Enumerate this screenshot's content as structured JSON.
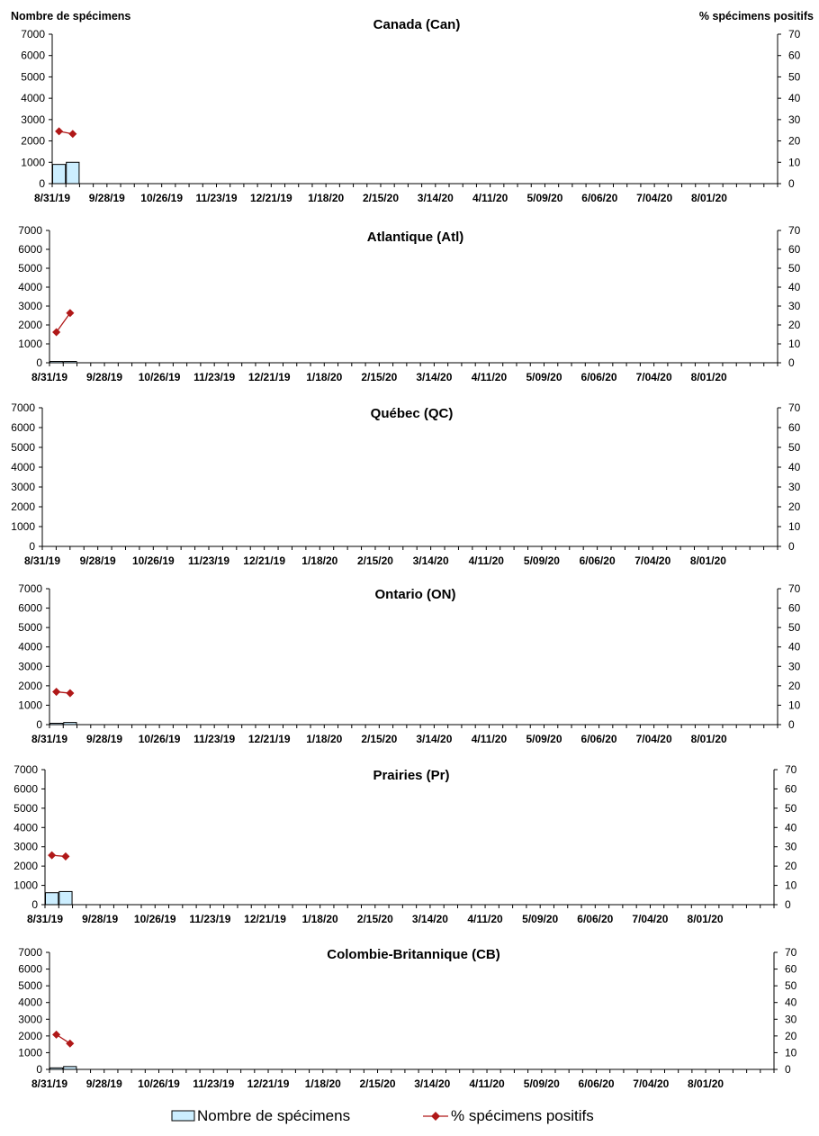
{
  "left_axis_title": "Nombre de spécimens",
  "right_axis_title": "% spécimens positifs",
  "legend": {
    "bar_label": "Nombre de spécimens",
    "line_label": "% spécimens positifs"
  },
  "colors": {
    "bar_fill": "#CCEEFF",
    "bar_stroke": "#000000",
    "line": "#B01818"
  },
  "chart_data": [
    {
      "type": "bar",
      "title": "Canada (Can)",
      "x_tick_labels": [
        "8/31/19",
        "9/28/19",
        "10/26/19",
        "11/23/19",
        "12/21/19",
        "1/18/20",
        "2/15/20",
        "3/14/20",
        "4/11/20",
        "5/09/20",
        "6/06/20",
        "7/04/20",
        "8/01/20"
      ],
      "y_left_ticks": [
        "0",
        "1000",
        "2000",
        "3000",
        "4000",
        "5000",
        "6000",
        "7000"
      ],
      "y_right_ticks": [
        "0",
        "10",
        "20",
        "30",
        "40",
        "50",
        "60",
        "70"
      ],
      "ylim": [
        0,
        7000
      ],
      "y2lim": [
        0,
        70
      ],
      "series": [
        {
          "name": "Nombre de spécimens",
          "axis": "left",
          "values": [
            900,
            1000
          ]
        },
        {
          "name": "% spécimens positifs",
          "axis": "right",
          "values": [
            24.5,
            23.3
          ]
        }
      ]
    },
    {
      "type": "bar",
      "title": "Atlantique (Atl)",
      "x_tick_labels": [
        "8/31/19",
        "9/28/19",
        "10/26/19",
        "11/23/19",
        "12/21/19",
        "1/18/20",
        "2/15/20",
        "3/14/20",
        "4/11/20",
        "5/09/20",
        "6/06/20",
        "7/04/20",
        "8/01/20"
      ],
      "y_left_ticks": [
        "0",
        "1000",
        "2000",
        "3000",
        "4000",
        "5000",
        "6000",
        "7000"
      ],
      "y_right_ticks": [
        "0",
        "10",
        "20",
        "30",
        "40",
        "50",
        "60",
        "70"
      ],
      "ylim": [
        0,
        7000
      ],
      "y2lim": [
        0,
        70
      ],
      "series": [
        {
          "name": "Nombre de spécimens",
          "axis": "left",
          "values": [
            40,
            45
          ]
        },
        {
          "name": "% spécimens positifs",
          "axis": "right",
          "values": [
            16.2,
            26.3
          ]
        }
      ]
    },
    {
      "type": "bar",
      "title": "Québec (QC)",
      "x_tick_labels": [
        "8/31/19",
        "9/28/19",
        "10/26/19",
        "11/23/19",
        "12/21/19",
        "1/18/20",
        "2/15/20",
        "3/14/20",
        "4/11/20",
        "5/09/20",
        "6/06/20",
        "7/04/20",
        "8/01/20"
      ],
      "y_left_ticks": [
        "0",
        "1000",
        "2000",
        "3000",
        "4000",
        "5000",
        "6000",
        "7000"
      ],
      "y_right_ticks": [
        "0",
        "10",
        "20",
        "30",
        "40",
        "50",
        "60",
        "70"
      ],
      "ylim": [
        0,
        7000
      ],
      "y2lim": [
        0,
        70
      ],
      "series": [
        {
          "name": "Nombre de spécimens",
          "axis": "left",
          "values": []
        },
        {
          "name": "% spécimens positifs",
          "axis": "right",
          "values": []
        }
      ]
    },
    {
      "type": "bar",
      "title": "Ontario (ON)",
      "x_tick_labels": [
        "8/31/19",
        "9/28/19",
        "10/26/19",
        "11/23/19",
        "12/21/19",
        "1/18/20",
        "2/15/20",
        "3/14/20",
        "4/11/20",
        "5/09/20",
        "6/06/20",
        "7/04/20",
        "8/01/20"
      ],
      "y_left_ticks": [
        "0",
        "1000",
        "2000",
        "3000",
        "4000",
        "5000",
        "6000",
        "7000"
      ],
      "y_right_ticks": [
        "0",
        "10",
        "20",
        "30",
        "40",
        "50",
        "60",
        "70"
      ],
      "ylim": [
        0,
        7000
      ],
      "y2lim": [
        0,
        70
      ],
      "series": [
        {
          "name": "Nombre de spécimens",
          "axis": "left",
          "values": [
            50,
            110
          ]
        },
        {
          "name": "% spécimens positifs",
          "axis": "right",
          "values": [
            16.9,
            16.2
          ]
        }
      ]
    },
    {
      "type": "bar",
      "title": "Prairies (Pr)",
      "x_tick_labels": [
        "8/31/19",
        "9/28/19",
        "10/26/19",
        "11/23/19",
        "12/21/19",
        "1/18/20",
        "2/15/20",
        "3/14/20",
        "4/11/20",
        "5/09/20",
        "6/06/20",
        "7/04/20",
        "8/01/20"
      ],
      "y_left_ticks": [
        "0",
        "1000",
        "2000",
        "3000",
        "4000",
        "5000",
        "6000",
        "7000"
      ],
      "y_right_ticks": [
        "0",
        "10",
        "20",
        "30",
        "40",
        "50",
        "60",
        "70"
      ],
      "ylim": [
        0,
        7000
      ],
      "y2lim": [
        0,
        70
      ],
      "series": [
        {
          "name": "Nombre de spécimens",
          "axis": "left",
          "values": [
            620,
            680
          ]
        },
        {
          "name": "% spécimens positifs",
          "axis": "right",
          "values": [
            25.6,
            25.0
          ]
        }
      ]
    },
    {
      "type": "bar",
      "title": "Colombie-Britannique (CB)",
      "x_tick_labels": [
        "8/31/19",
        "9/28/19",
        "10/26/19",
        "11/23/19",
        "12/21/19",
        "1/18/20",
        "2/15/20",
        "3/14/20",
        "4/11/20",
        "5/09/20",
        "6/06/20",
        "7/04/20",
        "8/01/20"
      ],
      "y_left_ticks": [
        "0",
        "1000",
        "2000",
        "3000",
        "4000",
        "5000",
        "6000",
        "7000"
      ],
      "y_right_ticks": [
        "0",
        "10",
        "20",
        "30",
        "40",
        "50",
        "60",
        "70"
      ],
      "ylim": [
        0,
        7000
      ],
      "y2lim": [
        0,
        70
      ],
      "series": [
        {
          "name": "Nombre de spécimens",
          "axis": "left",
          "values": [
            90,
            170
          ]
        },
        {
          "name": "% spécimens positifs",
          "axis": "right",
          "values": [
            20.8,
            15.5
          ]
        }
      ]
    }
  ]
}
